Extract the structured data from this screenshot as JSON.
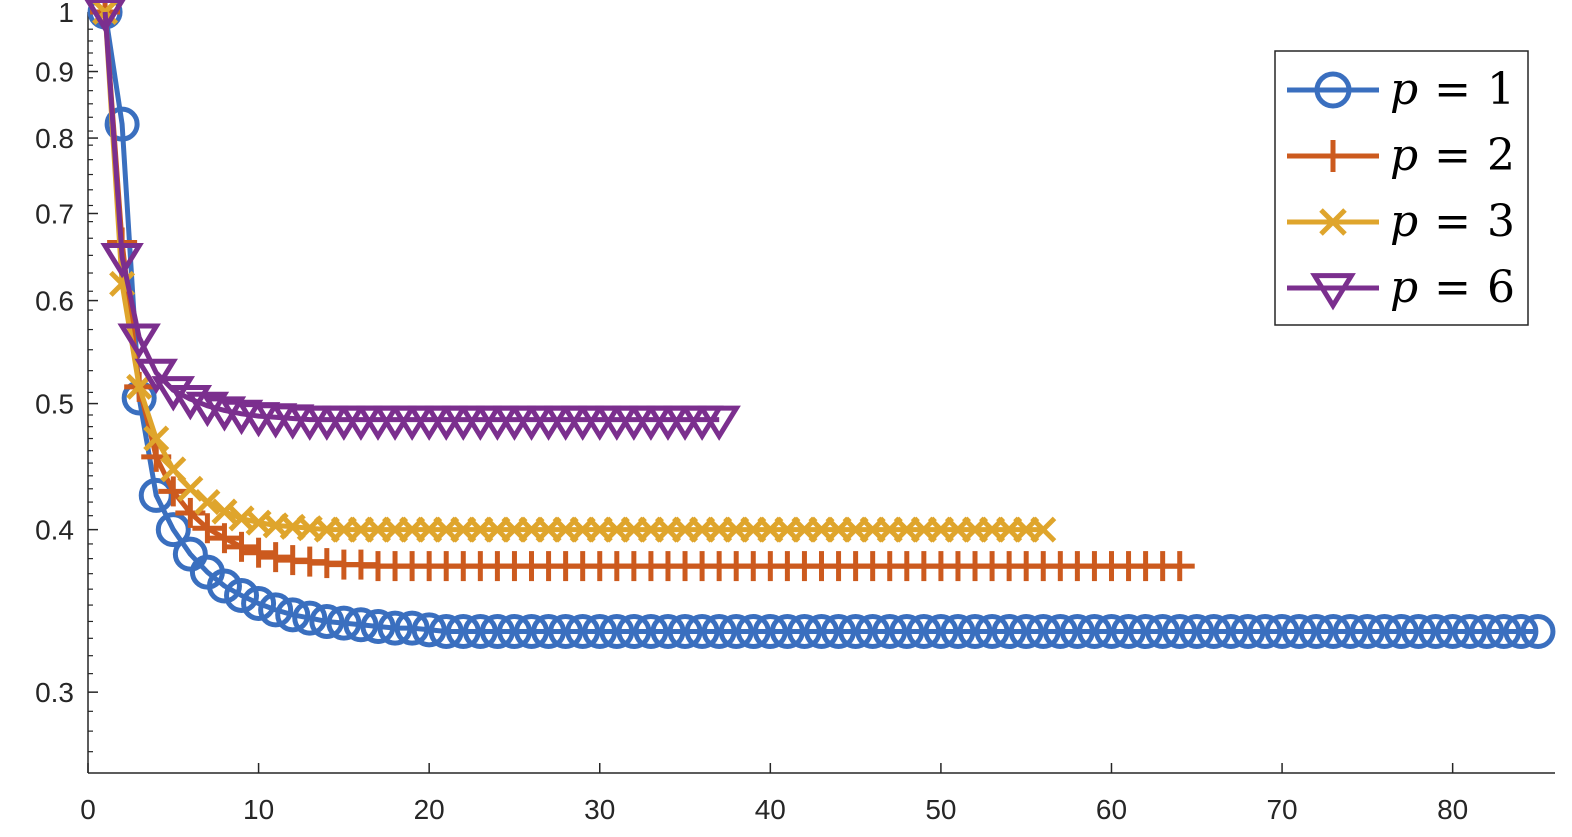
{
  "chart_data": {
    "type": "line",
    "title": "",
    "xlabel": "",
    "ylabel": "",
    "xlim": [
      0,
      86
    ],
    "ylim": [
      0.26,
      1.0
    ],
    "yscale": "log",
    "grid": false,
    "legend_position": "top-right",
    "x_ticks": [
      0,
      10,
      20,
      30,
      40,
      50,
      60,
      70,
      80
    ],
    "y_ticks": [
      0.3,
      0.4,
      0.5,
      0.6,
      0.7,
      0.8,
      0.9,
      1
    ],
    "x_tick_labels": [
      "0",
      "10",
      "20",
      "30",
      "40",
      "50",
      "60",
      "70",
      "80"
    ],
    "y_tick_labels": [
      "0.3",
      "0.4",
      "0.5",
      "0.6",
      "0.7",
      "0.8",
      "0.9",
      "1"
    ],
    "series": [
      {
        "name": "p = 1",
        "legend_var": "p",
        "legend_value": "1",
        "marker": "circle",
        "color": "#3a6fbf",
        "x_start": 1,
        "x_end": 85,
        "values": [
          1.0,
          0.82,
          0.505,
          0.425,
          0.4,
          0.383,
          0.371,
          0.362,
          0.356,
          0.351,
          0.347,
          0.344,
          0.342,
          0.34,
          0.339,
          0.338,
          0.337,
          0.336,
          0.336,
          0.335
        ],
        "limit": 0.334
      },
      {
        "name": "p = 2",
        "legend_var": "p",
        "legend_value": "2",
        "marker": "plus",
        "color": "#cc5a1e",
        "x_start": 1,
        "x_end": 64,
        "values": [
          1.0,
          0.665,
          0.515,
          0.455,
          0.428,
          0.412,
          0.401,
          0.394,
          0.388,
          0.384,
          0.381,
          0.379,
          0.378,
          0.377,
          0.376,
          0.376
        ],
        "limit": 0.375
      },
      {
        "name": "p = 3",
        "legend_var": "p",
        "legend_value": "3",
        "marker": "x",
        "color": "#dfa52c",
        "x_start": 1,
        "x_end": 56,
        "values": [
          1.0,
          0.618,
          0.515,
          0.47,
          0.445,
          0.43,
          0.42,
          0.413,
          0.408,
          0.405,
          0.403,
          0.402,
          0.401
        ],
        "limit": 0.4
      },
      {
        "name": "p = 6",
        "legend_var": "p",
        "legend_value": "6",
        "marker": "triangle-down",
        "color": "#7b2f8e",
        "x_start": 1,
        "x_end": 37,
        "values": [
          1.0,
          0.648,
          0.562,
          0.528,
          0.512,
          0.504,
          0.498,
          0.494,
          0.491,
          0.489,
          0.488,
          0.487
        ],
        "limit": 0.486
      }
    ]
  }
}
